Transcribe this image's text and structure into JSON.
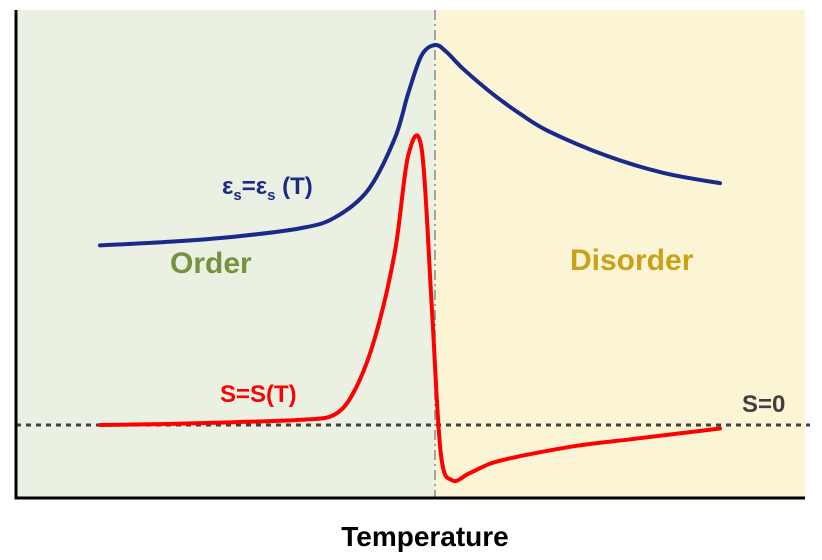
{
  "chart_data": {
    "type": "line",
    "title": "",
    "xlabel": "Temperature",
    "ylabel": "",
    "grid": false,
    "regions": [
      {
        "name": "Order",
        "color": "#eaf1e3",
        "label_color": "#76923c"
      },
      {
        "name": "Disorder",
        "color": "#fbf5d6",
        "label_color": "#c9a21a"
      }
    ],
    "reference_line": {
      "label": "S=0",
      "y": 0,
      "style": "dotted"
    },
    "transition": {
      "style": "dash-dot",
      "x": 0.5
    },
    "series": [
      {
        "name": "εs=εs (T)",
        "label_main": "ε",
        "label_sub": "s",
        "label_mid": "=ε",
        "label_sub2": "s",
        "label_end": " (T)",
        "color": "#1a2a8a",
        "x": [
          0.0,
          0.1,
          0.2,
          0.3,
          0.35,
          0.4,
          0.44,
          0.46,
          0.48,
          0.5,
          0.52,
          0.55,
          0.6,
          0.65,
          0.7,
          0.8,
          0.9,
          1.0
        ],
        "y": [
          0.52,
          0.53,
          0.545,
          0.57,
          0.6,
          0.68,
          0.83,
          0.96,
          1.07,
          1.1,
          1.08,
          1.03,
          0.96,
          0.9,
          0.85,
          0.78,
          0.73,
          0.7
        ]
      },
      {
        "name": "S=S(T)",
        "color": "#ff0000",
        "x": [
          0.0,
          0.1,
          0.2,
          0.3,
          0.35,
          0.38,
          0.41,
          0.44,
          0.46,
          0.48,
          0.495,
          0.51,
          0.53,
          0.56,
          0.6,
          0.65,
          0.75,
          0.85,
          1.0
        ],
        "y": [
          0.0,
          0.003,
          0.008,
          0.015,
          0.03,
          0.1,
          0.25,
          0.5,
          0.78,
          0.8,
          0.35,
          -0.08,
          -0.16,
          -0.14,
          -0.11,
          -0.09,
          -0.06,
          -0.04,
          -0.01
        ]
      }
    ],
    "xlim": [
      0,
      1
    ],
    "ylim": [
      -0.25,
      1.2
    ]
  }
}
